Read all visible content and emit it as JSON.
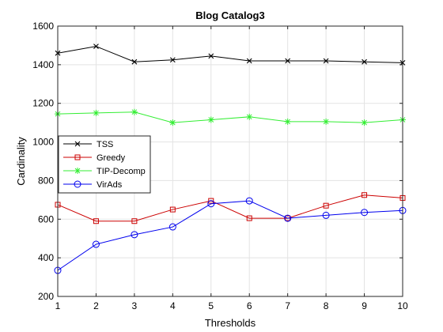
{
  "chart_data": {
    "type": "line",
    "title": "Blog Catalog3",
    "xlabel": "Thresholds",
    "ylabel": "Cardinality",
    "x": [
      1,
      2,
      3,
      4,
      5,
      6,
      7,
      8,
      9,
      10
    ],
    "xlim": [
      1,
      10
    ],
    "ylim": [
      200,
      1600
    ],
    "xticks": [
      "1",
      "2",
      "3",
      "4",
      "5",
      "6",
      "7",
      "8",
      "9",
      "10"
    ],
    "yticks": [
      "200",
      "400",
      "600",
      "800",
      "1000",
      "1200",
      "1400",
      "1600"
    ],
    "grid": true,
    "legend_position": "left",
    "series": [
      {
        "name": "TSS",
        "color": "#000000",
        "marker": "x",
        "values": [
          1460,
          1495,
          1415,
          1425,
          1445,
          1420,
          1420,
          1420,
          1415,
          1410
        ]
      },
      {
        "name": "Greedy",
        "color": "#cc0000",
        "marker": "square",
        "values": [
          675,
          590,
          590,
          650,
          695,
          605,
          605,
          670,
          725,
          710
        ]
      },
      {
        "name": "TIP-Decomp",
        "color": "#33ee33",
        "marker": "star",
        "values": [
          1145,
          1150,
          1155,
          1100,
          1115,
          1130,
          1105,
          1105,
          1100,
          1115
        ]
      },
      {
        "name": "VirAds",
        "color": "#0000ee",
        "marker": "circle",
        "values": [
          335,
          470,
          520,
          560,
          680,
          695,
          605,
          620,
          635,
          645
        ]
      }
    ]
  }
}
